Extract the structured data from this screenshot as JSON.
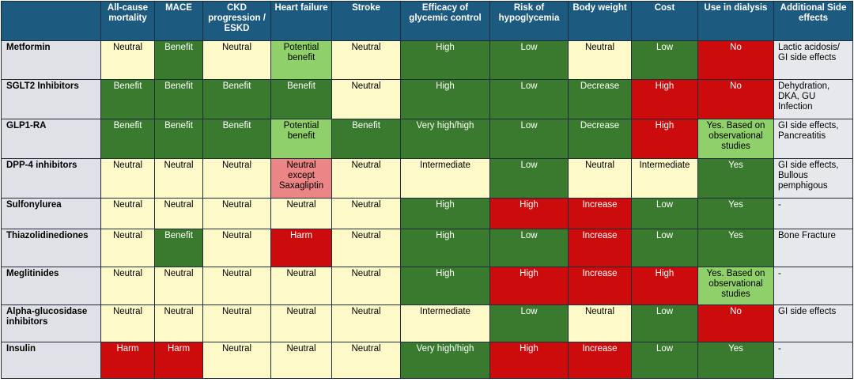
{
  "headers": [
    "",
    "All-cause mortality",
    "MACE",
    "CKD progression / ESKD",
    "Heart failure",
    "Stroke",
    "Efficacy of glycemic control",
    "Risk of hypoglycemia",
    "Body weight",
    "Cost",
    "Use in dialysis",
    "Additional Side effects"
  ],
  "colors": {
    "green": "#3a7a2e",
    "light_green": "#8fd06a",
    "yellow": "#fdf9c9",
    "red": "#cc0c0c",
    "pink": "#ec8585",
    "header": "#1d5a80"
  },
  "rows": [
    {
      "name": "Metformin",
      "height": 49,
      "cells": [
        [
          "Neutral",
          "y"
        ],
        [
          "Benefit",
          "g"
        ],
        [
          "Neutral",
          "y"
        ],
        [
          "Potential benefit",
          "lg"
        ],
        [
          "Neutral",
          "y"
        ],
        [
          "High",
          "g"
        ],
        [
          "Low",
          "g"
        ],
        [
          "Neutral",
          "y"
        ],
        [
          "Low",
          "g"
        ],
        [
          "No",
          "r"
        ]
      ],
      "notes": "Lactic acidosis/ GI side effects"
    },
    {
      "name": "SGLT2 Inhibitors",
      "height": 50,
      "cells": [
        [
          "Benefit",
          "g"
        ],
        [
          "Benefit",
          "g"
        ],
        [
          "Benefit",
          "g"
        ],
        [
          "Benefit",
          "g"
        ],
        [
          "Neutral",
          "y"
        ],
        [
          "High",
          "g"
        ],
        [
          "Low",
          "g"
        ],
        [
          "Decrease",
          "g"
        ],
        [
          "High",
          "r"
        ],
        [
          "No",
          "r"
        ]
      ],
      "notes": "Dehydration, DKA, GU Infection"
    },
    {
      "name": "GLP1-RA",
      "height": 50,
      "cells": [
        [
          "Benefit",
          "g"
        ],
        [
          "Benefit",
          "g"
        ],
        [
          "Benefit",
          "g"
        ],
        [
          "Potential benefit",
          "lg"
        ],
        [
          "Benefit",
          "g"
        ],
        [
          "Very high/high",
          "g"
        ],
        [
          "Low",
          "g"
        ],
        [
          "Decrease",
          "g"
        ],
        [
          "High",
          "r"
        ],
        [
          "Yes. Based on observational studies",
          "lg"
        ]
      ],
      "notes": "GI side effects, Pancreatitis"
    },
    {
      "name": "DPP-4 inhibitors",
      "height": 50,
      "cells": [
        [
          "Neutral",
          "y"
        ],
        [
          "Neutral",
          "y"
        ],
        [
          "Neutral",
          "y"
        ],
        [
          "Neutral except Saxagliptin",
          "pk"
        ],
        [
          "Neutral",
          "y"
        ],
        [
          "Intermediate",
          "y"
        ],
        [
          "Low",
          "g"
        ],
        [
          "Neutral",
          "y"
        ],
        [
          "Intermediate",
          "y"
        ],
        [
          "Yes",
          "g"
        ]
      ],
      "notes": "GI side effects, Bullous pemphigous"
    },
    {
      "name": "Sulfonylurea",
      "height": 39,
      "cells": [
        [
          "Neutral",
          "y"
        ],
        [
          "Neutral",
          "y"
        ],
        [
          "Neutral",
          "y"
        ],
        [
          "Neutral",
          "y"
        ],
        [
          "Neutral",
          "y"
        ],
        [
          "High",
          "g"
        ],
        [
          "High",
          "r"
        ],
        [
          "Increase",
          "r"
        ],
        [
          "Low",
          "g"
        ],
        [
          "Yes",
          "g"
        ]
      ],
      "notes": "-"
    },
    {
      "name": "Thiazolidinediones",
      "height": 48,
      "cells": [
        [
          "Neutral",
          "y"
        ],
        [
          "Benefit",
          "g"
        ],
        [
          "Neutral",
          "y"
        ],
        [
          "Harm",
          "r"
        ],
        [
          "Neutral",
          "y"
        ],
        [
          "High",
          "g"
        ],
        [
          "Low",
          "g"
        ],
        [
          "Increase",
          "r"
        ],
        [
          "Low",
          "g"
        ],
        [
          "Yes",
          "g"
        ]
      ],
      "notes": "Bone Fracture"
    },
    {
      "name": "Meglitinides",
      "height": 48,
      "cells": [
        [
          "Neutral",
          "y"
        ],
        [
          "Neutral",
          "y"
        ],
        [
          "Neutral",
          "y"
        ],
        [
          "Neutral",
          "y"
        ],
        [
          "Neutral",
          "y"
        ],
        [
          "High",
          "g"
        ],
        [
          "High",
          "r"
        ],
        [
          "Increase",
          "r"
        ],
        [
          "High",
          "r"
        ],
        [
          "Yes. Based on observational studies",
          "lg"
        ]
      ],
      "notes": "-"
    },
    {
      "name": "Alpha-glucosidase inhibitors",
      "height": 47,
      "cells": [
        [
          "Neutral",
          "y"
        ],
        [
          "Neutral",
          "y"
        ],
        [
          "Neutral",
          "y"
        ],
        [
          "Neutral",
          "y"
        ],
        [
          "Neutral",
          "y"
        ],
        [
          "Intermediate",
          "y"
        ],
        [
          "Low",
          "g"
        ],
        [
          "Neutral",
          "y"
        ],
        [
          "Low",
          "g"
        ],
        [
          "No",
          "r"
        ]
      ],
      "notes": "GI side effects"
    },
    {
      "name": "Insulin",
      "height": 46,
      "cells": [
        [
          "Harm",
          "r"
        ],
        [
          "Harm",
          "r"
        ],
        [
          "Neutral",
          "y"
        ],
        [
          "Neutral",
          "y"
        ],
        [
          "Neutral",
          "y"
        ],
        [
          "Very high/high",
          "g"
        ],
        [
          "High",
          "r"
        ],
        [
          "Increase",
          "r"
        ],
        [
          "Low",
          "g"
        ],
        [
          "Yes",
          "g"
        ]
      ],
      "notes": "-"
    }
  ]
}
